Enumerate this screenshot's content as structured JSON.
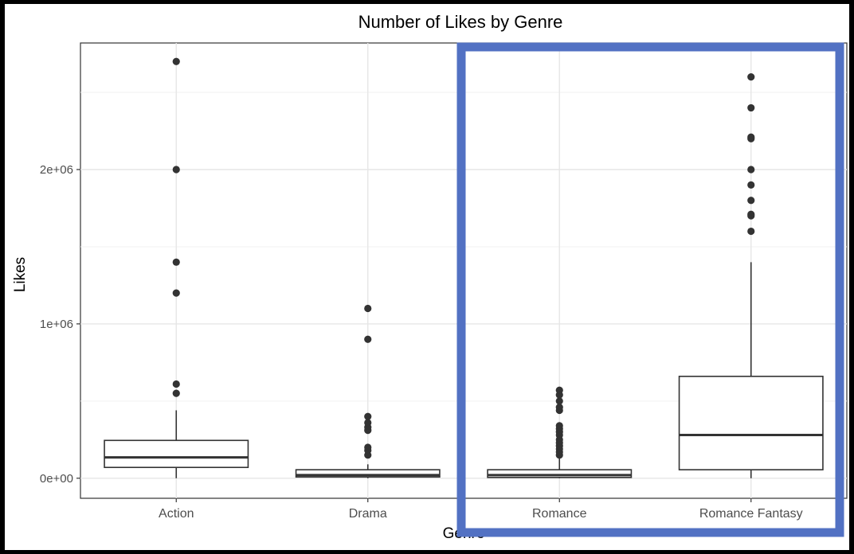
{
  "chart_data": {
    "type": "boxplot",
    "title": "Number of Likes by Genre",
    "xlabel": "Genre",
    "ylabel": "Likes",
    "ylim": [
      -130000,
      2820000
    ],
    "yticks": [
      {
        "value": 0,
        "label": "0e+00"
      },
      {
        "value": 1000000,
        "label": "1e+06"
      },
      {
        "value": 2000000,
        "label": "2e+06"
      }
    ],
    "minor_gridlines": [
      500000,
      1500000,
      2500000
    ],
    "grid": true,
    "categories": [
      "Action",
      "Drama",
      "Romance",
      "Romance Fantasy"
    ],
    "boxes": [
      {
        "category": "Action",
        "whisker_low": 0,
        "q1": 70000,
        "median": 135000,
        "q3": 245000,
        "whisker_high": 440000,
        "outliers": [
          550000,
          610000,
          1200000,
          1400000,
          2000000,
          2700000
        ]
      },
      {
        "category": "Drama",
        "whisker_low": 0,
        "q1": 8000,
        "median": 20000,
        "q3": 55000,
        "whisker_high": 90000,
        "outliers": [
          150000,
          180000,
          200000,
          310000,
          330000,
          360000,
          400000,
          900000,
          1100000
        ]
      },
      {
        "category": "Romance",
        "whisker_low": 0,
        "q1": 5000,
        "median": 20000,
        "q3": 55000,
        "whisker_high": 130000,
        "outliers": [
          150000,
          170000,
          190000,
          210000,
          230000,
          250000,
          280000,
          300000,
          320000,
          340000,
          440000,
          460000,
          500000,
          540000,
          570000
        ]
      },
      {
        "category": "Romance Fantasy",
        "whisker_low": 0,
        "q1": 55000,
        "median": 280000,
        "q3": 660000,
        "whisker_high": 1400000,
        "outliers": [
          1600000,
          1700000,
          1710000,
          1800000,
          1900000,
          2000000,
          2200000,
          2210000,
          2400000,
          2600000
        ]
      }
    ],
    "highlight": {
      "categories": [
        "Romance",
        "Romance Fantasy"
      ],
      "color": "#5271c3"
    }
  }
}
